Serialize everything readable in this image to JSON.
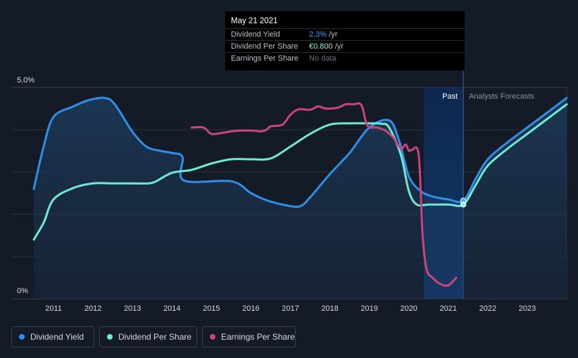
{
  "tooltip": {
    "date": "May 21 2021",
    "rows": [
      {
        "label": "Dividend Yield",
        "value": "2.3%",
        "unit": " /yr",
        "color": "#3aa0ff"
      },
      {
        "label": "Dividend Per Share",
        "value": "€0.800",
        "unit": " /yr",
        "color": "#8ef1e1"
      },
      {
        "label": "Earnings Per Share",
        "value": "No data",
        "unit": "",
        "color": "#6b7079"
      }
    ]
  },
  "legend": [
    {
      "label": "Dividend Yield",
      "color": "#2f8fe6"
    },
    {
      "label": "Dividend Per Share",
      "color": "#6fe8d4"
    },
    {
      "label": "Earnings Per Share",
      "color": "#c9457e"
    }
  ],
  "chart_data": {
    "type": "line",
    "y_tick_labels": [
      "5.0%",
      "0%"
    ],
    "ylim": [
      0,
      5.0
    ],
    "xlim": [
      2010.5,
      2024.0
    ],
    "x_tick_labels": [
      "2011",
      "2012",
      "2013",
      "2014",
      "2015",
      "2016",
      "2017",
      "2018",
      "2019",
      "2020",
      "2021",
      "2022",
      "2023"
    ],
    "x_ticks": [
      2011,
      2012,
      2013,
      2014,
      2015,
      2016,
      2017,
      2018,
      2019,
      2020,
      2021,
      2022,
      2023
    ],
    "grid": true,
    "past_label": "Past",
    "forecast_label": "Analysts Forecasts",
    "past_band": [
      2020.38,
      2021.38
    ],
    "series": [
      {
        "name": "Dividend Yield",
        "color": "#2f8fe6",
        "fill": true,
        "points": [
          [
            2010.5,
            2.6
          ],
          [
            2010.75,
            3.6
          ],
          [
            2011.0,
            4.3
          ],
          [
            2011.5,
            4.55
          ],
          [
            2011.9,
            4.7
          ],
          [
            2012.3,
            4.75
          ],
          [
            2012.55,
            4.6
          ],
          [
            2013.0,
            3.95
          ],
          [
            2013.35,
            3.6
          ],
          [
            2013.7,
            3.5
          ],
          [
            2014.0,
            3.45
          ],
          [
            2014.27,
            3.35
          ],
          [
            2014.3,
            2.8
          ],
          [
            2015.5,
            2.78
          ],
          [
            2016.0,
            2.5
          ],
          [
            2016.4,
            2.33
          ],
          [
            2016.9,
            2.21
          ],
          [
            2017.25,
            2.19
          ],
          [
            2017.5,
            2.4
          ],
          [
            2018.0,
            2.95
          ],
          [
            2018.5,
            3.45
          ],
          [
            2019.0,
            4.05
          ],
          [
            2019.5,
            4.22
          ],
          [
            2019.75,
            3.75
          ],
          [
            2020.0,
            2.9
          ],
          [
            2020.3,
            2.55
          ],
          [
            2020.6,
            2.42
          ],
          [
            2021.0,
            2.35
          ],
          [
            2021.38,
            2.32
          ],
          [
            2021.7,
            2.85
          ],
          [
            2022.0,
            3.3
          ],
          [
            2022.5,
            3.7
          ],
          [
            2023.0,
            4.05
          ],
          [
            2023.5,
            4.4
          ],
          [
            2024.0,
            4.75
          ]
        ]
      },
      {
        "name": "Dividend Per Share",
        "color": "#6fe8d4",
        "fill": false,
        "points": [
          [
            2010.5,
            1.4
          ],
          [
            2010.75,
            1.8
          ],
          [
            2011.0,
            2.35
          ],
          [
            2011.5,
            2.62
          ],
          [
            2012.0,
            2.73
          ],
          [
            2012.5,
            2.73
          ],
          [
            2013.0,
            2.73
          ],
          [
            2013.4,
            2.73
          ],
          [
            2013.6,
            2.78
          ],
          [
            2014.0,
            2.98
          ],
          [
            2014.5,
            3.05
          ],
          [
            2015.0,
            3.2
          ],
          [
            2015.5,
            3.3
          ],
          [
            2016.0,
            3.3
          ],
          [
            2016.5,
            3.32
          ],
          [
            2017.0,
            3.6
          ],
          [
            2017.5,
            3.9
          ],
          [
            2018.0,
            4.12
          ],
          [
            2018.5,
            4.15
          ],
          [
            2019.0,
            4.15
          ],
          [
            2019.3,
            4.14
          ],
          [
            2019.5,
            4.05
          ],
          [
            2019.8,
            3.4
          ],
          [
            2020.0,
            2.55
          ],
          [
            2020.2,
            2.23
          ],
          [
            2020.5,
            2.23
          ],
          [
            2021.0,
            2.23
          ],
          [
            2021.38,
            2.23
          ],
          [
            2021.7,
            2.7
          ],
          [
            2022.0,
            3.15
          ],
          [
            2022.5,
            3.55
          ],
          [
            2023.0,
            3.9
          ],
          [
            2023.5,
            4.25
          ],
          [
            2024.0,
            4.6
          ]
        ]
      },
      {
        "name": "Earnings Per Share",
        "color": "#c9457e",
        "fill": false,
        "points": [
          [
            2014.5,
            4.05
          ],
          [
            2014.8,
            4.05
          ],
          [
            2015.0,
            3.9
          ],
          [
            2015.3,
            3.93
          ],
          [
            2015.6,
            3.97
          ],
          [
            2016.0,
            3.98
          ],
          [
            2016.25,
            3.96
          ],
          [
            2016.4,
            4.0
          ],
          [
            2016.5,
            4.08
          ],
          [
            2016.8,
            4.12
          ],
          [
            2017.0,
            4.35
          ],
          [
            2017.2,
            4.48
          ],
          [
            2017.5,
            4.47
          ],
          [
            2017.7,
            4.55
          ],
          [
            2017.9,
            4.5
          ],
          [
            2018.2,
            4.52
          ],
          [
            2018.4,
            4.6
          ],
          [
            2018.6,
            4.6
          ],
          [
            2018.8,
            4.58
          ],
          [
            2018.95,
            4.1
          ],
          [
            2019.2,
            4.05
          ],
          [
            2019.4,
            3.98
          ],
          [
            2019.6,
            3.82
          ],
          [
            2019.8,
            3.55
          ],
          [
            2019.92,
            3.65
          ],
          [
            2020.0,
            3.5
          ],
          [
            2020.08,
            3.52
          ],
          [
            2020.25,
            3.4
          ],
          [
            2020.35,
            1.5
          ],
          [
            2020.45,
            0.7
          ],
          [
            2020.6,
            0.5
          ],
          [
            2020.8,
            0.35
          ],
          [
            2021.0,
            0.32
          ],
          [
            2021.2,
            0.5
          ]
        ]
      }
    ]
  }
}
